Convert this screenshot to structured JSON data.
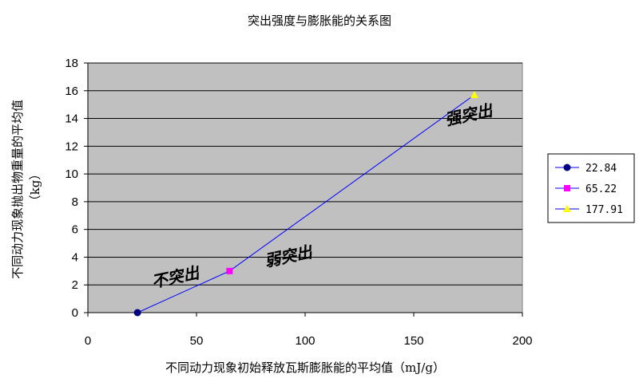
{
  "chart_data": {
    "type": "line",
    "title": "突出强度与膨胀能的关系图",
    "xlabel": "不同动力现象初始释放瓦斯膨胀能的平均值（mJ/g）",
    "ylabel": "不同动力现象抛出物重量的平均值（kg）",
    "xlim": [
      0,
      200
    ],
    "ylim": [
      0,
      18
    ],
    "x_ticks": [
      0,
      50,
      100,
      150,
      200
    ],
    "y_ticks": [
      0,
      2,
      4,
      6,
      8,
      10,
      12,
      14,
      16,
      18
    ],
    "grid": "horizontal",
    "plot_background": "#c0c0c0",
    "line_color": "#0000ff",
    "legend_position": "right",
    "line": [
      {
        "x": 22.84,
        "y": 0
      },
      {
        "x": 65.22,
        "y": 3
      },
      {
        "x": 177.91,
        "y": 15.7
      }
    ],
    "series": [
      {
        "name": "22.84",
        "x": 22.84,
        "y": 0,
        "marker": "circle",
        "color": "#000080"
      },
      {
        "name": "65.22",
        "x": 65.22,
        "y": 3,
        "marker": "square",
        "color": "#ff00ff"
      },
      {
        "name": "177.91",
        "x": 177.91,
        "y": 15.7,
        "marker": "triangle",
        "color": "#ffff00"
      }
    ],
    "annotations": [
      {
        "text": "不突出",
        "x": 30,
        "y": 1.8,
        "angle": -12
      },
      {
        "text": "弱突出",
        "x": 82,
        "y": 3.3,
        "angle": -12
      },
      {
        "text": "强突出",
        "x": 165,
        "y": 13.5,
        "angle": -12
      }
    ]
  }
}
